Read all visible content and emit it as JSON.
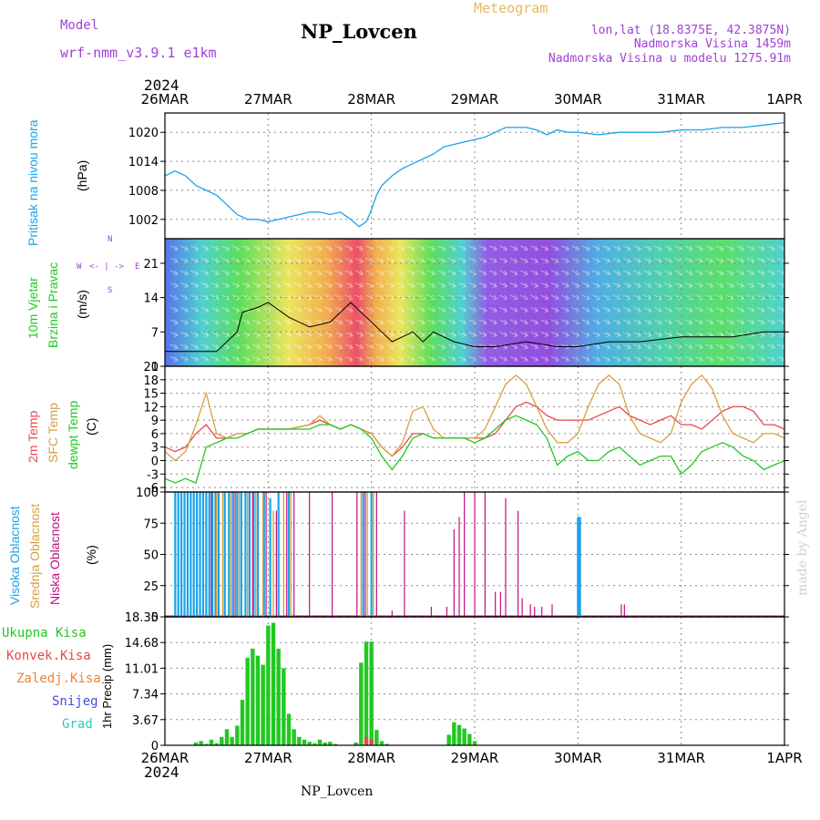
{
  "header": {
    "model_label": "Model",
    "model_value": "wrf-nmm_v3.9.1  e1km",
    "station_title": "NP_Lovcen",
    "meteogram_label": "Meteogram",
    "lonlat": "lon,lat (18.8375E, 42.3875N)",
    "altitude": "Nadmorska Visina 1459m",
    "model_altitude": "Nadmorska Visina u modelu 1275.91m",
    "year_top": "2024",
    "year_bottom": "2024",
    "footer_station": "NP_Lovcen",
    "watermark": "made by Angel"
  },
  "colors": {
    "pressure": "#1ba3e8",
    "temp2m": "#e84848",
    "sfc_temp": "#d8a040",
    "dewpt": "#22c822",
    "high_cloud": "#1ba3e8",
    "mid_cloud": "#d8a040",
    "low_cloud": "#c01080",
    "precip_total": "#22c822",
    "precip_conv": "#e84848",
    "precip_frz": "#f08030",
    "snow": "#4848e8",
    "grad": "#30c8c8",
    "header_purple": "#a040d8",
    "header_orange": "#e8b860"
  },
  "x_axis": {
    "labels": [
      "26MAR",
      "27MAR",
      "28MAR",
      "29MAR",
      "30MAR",
      "31MAR",
      "1APR"
    ]
  },
  "panels": {
    "pressure": {
      "label_main": "Pritisak na nivou mora",
      "label_unit": "(hPa)"
    },
    "wind": {
      "label_main": "10m Vjetar",
      "label_sub": "Brzina i Pravac",
      "label_unit": "(m/s)",
      "compass_n": "N",
      "compass_w": "W",
      "compass_e": "E",
      "compass_s": "S",
      "compass_arrows": "<- | ->",
      "compass_vert": "^ | v"
    },
    "temp": {
      "label_2m": "2m Temp",
      "label_sfc": "SFC Temp",
      "label_dew": "dewpt Temp",
      "label_unit": "(C)"
    },
    "cloud": {
      "label_high": "Visoka Oblacnost",
      "label_mid": "Srednja Oblacnost",
      "label_low": "Niska Oblacnost",
      "label_unit": "(%)"
    },
    "precip": {
      "label_total": "Ukupna Kisa",
      "label_conv": "Konvek.Kisa",
      "label_frz": "Zaledj.Kisa",
      "label_snow": "Snijeg",
      "label_grad": "Grad",
      "label_unit": "1hr Precip (mm)"
    }
  },
  "chart_data": [
    {
      "type": "line",
      "name": "pressure",
      "ylabel": "(hPa)",
      "ylim": [
        998,
        1024
      ],
      "yticks": [
        1002,
        1008,
        1014,
        1020
      ],
      "x_days": [
        0,
        0.1,
        0.2,
        0.3,
        0.4,
        0.5,
        0.6,
        0.7,
        0.8,
        0.9,
        1.0,
        1.1,
        1.2,
        1.3,
        1.4,
        1.5,
        1.6,
        1.7,
        1.8,
        1.88,
        1.95,
        2.0,
        2.05,
        2.1,
        2.2,
        2.3,
        2.4,
        2.5,
        2.6,
        2.7,
        2.8,
        2.9,
        3.0,
        3.1,
        3.2,
        3.3,
        3.4,
        3.5,
        3.6,
        3.7,
        3.8,
        3.9,
        4.0,
        4.2,
        4.4,
        4.6,
        4.8,
        5.0,
        5.2,
        5.4,
        5.6,
        5.8,
        6.0
      ],
      "series": [
        {
          "values": [
            1011,
            1012,
            1011,
            1009,
            1008,
            1007,
            1005,
            1003,
            1002,
            1002,
            1001.5,
            1002,
            1002.5,
            1003,
            1003.5,
            1003.5,
            1003,
            1003.5,
            1002,
            1000.5,
            1001.5,
            1004,
            1007,
            1009,
            1011,
            1012.5,
            1013.5,
            1014.5,
            1015.5,
            1017,
            1017.5,
            1018,
            1018.5,
            1019,
            1020,
            1021,
            1021,
            1021,
            1020.5,
            1019.5,
            1020.5,
            1020,
            1020,
            1019.5,
            1020,
            1020,
            1020,
            1020.5,
            1020.5,
            1021,
            1021,
            1021.5,
            1022
          ]
        }
      ]
    },
    {
      "type": "line",
      "name": "wind",
      "ylabel": "(m/s)",
      "ylim": [
        0,
        26
      ],
      "yticks": [
        0,
        7,
        14,
        21
      ],
      "x_days": [
        0,
        0.25,
        0.5,
        0.7,
        0.75,
        0.9,
        1.0,
        1.2,
        1.4,
        1.6,
        1.8,
        1.9,
        2.0,
        2.1,
        2.2,
        2.3,
        2.4,
        2.5,
        2.6,
        2.8,
        3.0,
        3.2,
        3.5,
        3.8,
        4.0,
        4.3,
        4.6,
        5.0,
        5.3,
        5.5,
        5.8,
        6.0
      ],
      "series": [
        {
          "values": [
            3,
            3,
            3,
            7,
            11,
            12,
            13,
            10,
            8,
            9,
            13,
            11,
            9,
            7,
            5,
            6,
            7,
            5,
            7,
            5,
            4,
            4,
            5,
            4,
            4,
            5,
            5,
            6,
            6,
            6,
            7,
            7
          ]
        }
      ]
    },
    {
      "type": "line",
      "name": "temperature",
      "ylabel": "(C)",
      "ylim": [
        -7,
        21
      ],
      "yticks": [
        -6,
        -3,
        0,
        3,
        6,
        9,
        12,
        15,
        18,
        21
      ],
      "x_days": [
        0,
        0.1,
        0.2,
        0.3,
        0.4,
        0.5,
        0.6,
        0.7,
        0.8,
        0.9,
        1.0,
        1.2,
        1.4,
        1.5,
        1.6,
        1.7,
        1.8,
        1.9,
        2.0,
        2.1,
        2.2,
        2.3,
        2.4,
        2.5,
        2.6,
        2.7,
        2.8,
        2.9,
        3.0,
        3.1,
        3.2,
        3.3,
        3.4,
        3.5,
        3.6,
        3.7,
        3.8,
        3.9,
        4.0,
        4.1,
        4.2,
        4.3,
        4.4,
        4.5,
        4.6,
        4.7,
        4.8,
        4.9,
        5.0,
        5.1,
        5.2,
        5.3,
        5.4,
        5.5,
        5.6,
        5.7,
        5.8,
        5.9,
        6.0
      ],
      "series": [
        {
          "name": "2m Temp",
          "values": [
            3,
            2,
            3,
            6,
            8,
            5,
            5,
            6,
            6,
            7,
            7,
            7,
            8,
            9,
            8,
            7,
            8,
            7,
            6,
            3,
            1,
            3,
            6,
            6,
            5,
            5,
            5,
            5,
            5,
            5,
            6,
            9,
            12,
            13,
            12,
            10,
            9,
            9,
            9,
            9,
            10,
            11,
            12,
            10,
            9,
            8,
            9,
            10,
            8,
            8,
            7,
            9,
            11,
            12,
            12,
            11,
            8,
            8,
            7
          ]
        },
        {
          "name": "SFC Temp",
          "values": [
            2,
            0,
            2,
            8,
            15,
            6,
            5,
            6,
            6,
            7,
            7,
            7,
            8,
            10,
            8,
            7,
            8,
            7,
            6,
            3,
            1,
            4,
            11,
            12,
            7,
            5,
            5,
            5,
            5,
            7,
            12,
            17,
            19,
            17,
            12,
            7,
            4,
            4,
            6,
            12,
            17,
            19,
            17,
            10,
            6,
            5,
            4,
            6,
            13,
            17,
            19,
            16,
            10,
            6,
            5,
            4,
            6,
            6,
            5
          ]
        },
        {
          "name": "dewpt Temp",
          "values": [
            -4,
            -5,
            -4,
            -5,
            3,
            4,
            5,
            5,
            6,
            7,
            7,
            7,
            7,
            8,
            8,
            7,
            8,
            7,
            5,
            1,
            -2,
            1,
            5,
            6,
            5,
            5,
            5,
            5,
            4,
            5,
            7,
            9,
            10,
            9,
            8,
            5,
            -1,
            1,
            2,
            0,
            0,
            2,
            3,
            1,
            -1,
            0,
            1,
            1,
            -3,
            -1,
            2,
            3,
            4,
            3,
            1,
            0,
            -2,
            -1,
            0
          ]
        }
      ]
    },
    {
      "type": "bar",
      "name": "cloud_cover",
      "ylabel": "(%)",
      "ylim": [
        0,
        100
      ],
      "yticks": [
        0,
        25,
        50,
        75,
        100
      ],
      "series": [
        {
          "name": "Visoka Oblacnost",
          "x_days": [
            0.1,
            0.13,
            0.16,
            0.19,
            0.22,
            0.25,
            0.28,
            0.31,
            0.34,
            0.37,
            0.4,
            0.43,
            0.46,
            0.49,
            0.52,
            0.58,
            0.62,
            0.66,
            0.7,
            0.74,
            0.78,
            0.82,
            0.86,
            0.9,
            0.96,
            1.02,
            1.1,
            1.2,
            1.92,
            2.0,
            4.0,
            4.01,
            4.02
          ],
          "values": [
            100,
            100,
            100,
            100,
            100,
            100,
            100,
            100,
            100,
            100,
            100,
            100,
            100,
            100,
            100,
            100,
            100,
            100,
            100,
            100,
            100,
            100,
            100,
            100,
            100,
            95,
            100,
            100,
            100,
            100,
            80,
            80,
            80
          ]
        },
        {
          "name": "Srednja Oblacnost",
          "x_days": [
            0.5,
            0.56,
            0.64,
            0.72,
            0.8,
            0.88,
            0.95,
            1.05,
            1.15,
            1.22,
            1.9,
            1.96,
            2.02
          ],
          "values": [
            100,
            100,
            100,
            100,
            100,
            100,
            100,
            85,
            100,
            100,
            100,
            100,
            100
          ]
        },
        {
          "name": "Niska Oblacnost",
          "x_days": [
            0.45,
            0.68,
            0.85,
            0.98,
            1.08,
            1.18,
            1.25,
            1.4,
            1.62,
            1.86,
            1.94,
            2.05,
            2.2,
            2.32,
            2.58,
            2.73,
            2.8,
            2.85,
            2.9,
            3.0,
            3.1,
            3.2,
            3.25,
            3.3,
            3.42,
            3.46,
            3.54,
            3.58,
            3.65,
            3.75,
            4.42,
            4.45
          ],
          "values": [
            100,
            100,
            100,
            100,
            85,
            100,
            100,
            100,
            100,
            100,
            100,
            100,
            5,
            85,
            8,
            8,
            70,
            80,
            100,
            100,
            100,
            20,
            20,
            95,
            85,
            15,
            10,
            8,
            8,
            10,
            10,
            10
          ]
        }
      ]
    },
    {
      "type": "bar",
      "name": "precipitation",
      "ylabel": "1hr Precip (mm)",
      "ylim": [
        0,
        18.35
      ],
      "yticks": [
        0,
        3.67,
        7.34,
        11.01,
        14.68,
        18.35
      ],
      "series": [
        {
          "name": "Ukupna Kisa",
          "x_days": [
            0.3,
            0.35,
            0.4,
            0.45,
            0.5,
            0.55,
            0.6,
            0.65,
            0.7,
            0.75,
            0.8,
            0.85,
            0.9,
            0.95,
            1.0,
            1.05,
            1.1,
            1.15,
            1.2,
            1.25,
            1.3,
            1.35,
            1.4,
            1.45,
            1.5,
            1.55,
            1.6,
            1.65,
            1.85,
            1.9,
            1.95,
            2.0,
            2.05,
            2.1,
            2.15,
            2.75,
            2.8,
            2.85,
            2.9,
            2.95,
            3.0
          ],
          "values": [
            0.4,
            0.6,
            0.2,
            0.8,
            0.3,
            1.2,
            2.3,
            1.2,
            2.8,
            6.5,
            12.5,
            13.8,
            12.8,
            11.5,
            17.1,
            17.5,
            13.8,
            11.0,
            4.5,
            2.3,
            1.2,
            0.8,
            0.5,
            0.3,
            0.8,
            0.4,
            0.5,
            0.2,
            0.4,
            11.8,
            14.8,
            14.8,
            2.2,
            0.6,
            0.2,
            1.5,
            3.3,
            2.9,
            2.4,
            1.6,
            0.6
          ]
        },
        {
          "name": "Konvek.Kisa",
          "x_days": [
            1.95,
            2.0
          ],
          "values": [
            1.2,
            0.8
          ]
        }
      ]
    }
  ]
}
